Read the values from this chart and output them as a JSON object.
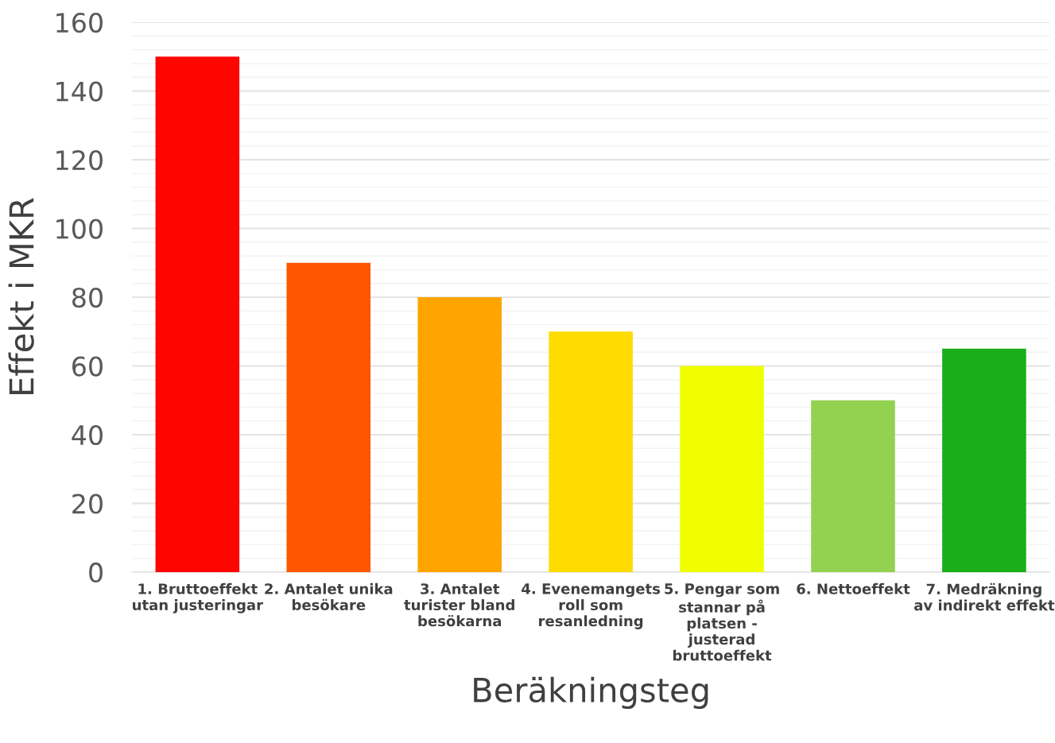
{
  "chart_data": {
    "type": "bar",
    "xlabel": "Beräkningsteg",
    "ylabel": "Effekt i MKR",
    "categories": [
      "1. Bruttoeffekt\nutan justeringar",
      "2. Antalet unika\nbesökare",
      "3. Antalet\nturister bland\nbesökarna",
      "4. Evenemangets\nroll som\nresanledning",
      "5. Pengar som\nstannar på\nplatsen -\njusterad\nbruttoeffekt",
      "6. Nettoeffekt",
      "7. Medräkning\nav indirekt effekt"
    ],
    "values": [
      150,
      90,
      80,
      70,
      60,
      50,
      65
    ],
    "colors": [
      "#fe0500",
      "#fe5501",
      "#fea500",
      "#fedc00",
      "#f0fe00",
      "#93d150",
      "#19ae1a"
    ],
    "ylim": [
      0,
      160
    ],
    "yticks": [
      0,
      20,
      40,
      60,
      80,
      100,
      120,
      140,
      160
    ],
    "grid": "y",
    "legend": false
  }
}
